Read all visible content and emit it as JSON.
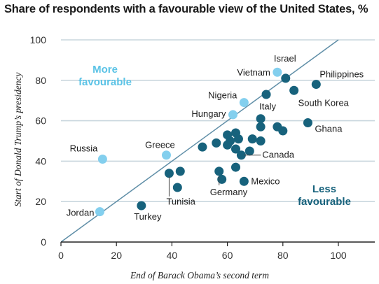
{
  "chart_data": {
    "type": "scatter",
    "title": "Share of respondents with a favourable view of the United States, %",
    "xlabel": "End of Barack Obama’s second term",
    "ylabel": "Start of Donald Trump’s presidency",
    "xlim": [
      0,
      100
    ],
    "ylim": [
      0,
      100
    ],
    "x_ticks": [
      0,
      20,
      40,
      60,
      80,
      100
    ],
    "y_ticks": [
      0,
      20,
      40,
      60,
      80,
      100
    ],
    "grid": "horizontal",
    "reference_line": "y = x",
    "region_labels": {
      "above": "More favourable",
      "below": "Less favourable"
    },
    "colors": {
      "more_favourable": "#83cfee",
      "less_favourable": "#17627c",
      "diagonal": "#5f8ea7",
      "grid": "#c9d6de",
      "more_text": "#5bc3e6",
      "less_text": "#17627c"
    },
    "points": [
      {
        "label": "Russia",
        "x": 15,
        "y": 41,
        "group": "more"
      },
      {
        "label": "Jordan",
        "x": 14,
        "y": 15,
        "group": "more"
      },
      {
        "label": "Greece",
        "x": 38,
        "y": 43,
        "group": "more"
      },
      {
        "label": "Hungary",
        "x": 62,
        "y": 63,
        "group": "more"
      },
      {
        "label": "Nigeria",
        "x": 66,
        "y": 69,
        "group": "more"
      },
      {
        "label": "Vietnam",
        "x": 78,
        "y": 84,
        "group": "more"
      },
      {
        "label": "Israel",
        "x": 81,
        "y": 81,
        "group": "less"
      },
      {
        "label": "Philippines",
        "x": 92,
        "y": 78,
        "group": "less"
      },
      {
        "label": "South Korea",
        "x": 84,
        "y": 75,
        "group": "less"
      },
      {
        "label": "Ghana",
        "x": 89,
        "y": 59,
        "group": "less"
      },
      {
        "label": "Italy",
        "x": 72,
        "y": 61,
        "group": "less"
      },
      {
        "label": "Canada",
        "x": 65,
        "y": 43,
        "group": "less"
      },
      {
        "label": "Mexico",
        "x": 66,
        "y": 30,
        "group": "less"
      },
      {
        "label": "Germany",
        "x": 57,
        "y": 35,
        "group": "less"
      },
      {
        "label": "Tunisia",
        "x": 39,
        "y": 34,
        "group": "less"
      },
      {
        "label": "Turkey",
        "x": 29,
        "y": 18,
        "group": "less"
      },
      {
        "label": "",
        "x": 74,
        "y": 73,
        "group": "less"
      },
      {
        "label": "",
        "x": 72,
        "y": 57,
        "group": "less"
      },
      {
        "label": "",
        "x": 78,
        "y": 57,
        "group": "less"
      },
      {
        "label": "",
        "x": 80,
        "y": 55,
        "group": "less"
      },
      {
        "label": "",
        "x": 72,
        "y": 50,
        "group": "less"
      },
      {
        "label": "",
        "x": 69,
        "y": 51,
        "group": "less"
      },
      {
        "label": "",
        "x": 68,
        "y": 45,
        "group": "less"
      },
      {
        "label": "",
        "x": 63,
        "y": 54,
        "group": "less"
      },
      {
        "label": "",
        "x": 64,
        "y": 51,
        "group": "less"
      },
      {
        "label": "",
        "x": 60,
        "y": 53,
        "group": "less"
      },
      {
        "label": "",
        "x": 61,
        "y": 50,
        "group": "less"
      },
      {
        "label": "",
        "x": 60,
        "y": 48,
        "group": "less"
      },
      {
        "label": "",
        "x": 63,
        "y": 46,
        "group": "less"
      },
      {
        "label": "",
        "x": 56,
        "y": 49,
        "group": "less"
      },
      {
        "label": "",
        "x": 51,
        "y": 47,
        "group": "less"
      },
      {
        "label": "",
        "x": 43,
        "y": 35,
        "group": "less"
      },
      {
        "label": "",
        "x": 42,
        "y": 27,
        "group": "less"
      },
      {
        "label": "",
        "x": 63,
        "y": 37,
        "group": "less"
      },
      {
        "label": "",
        "x": 58,
        "y": 31,
        "group": "less"
      }
    ]
  }
}
